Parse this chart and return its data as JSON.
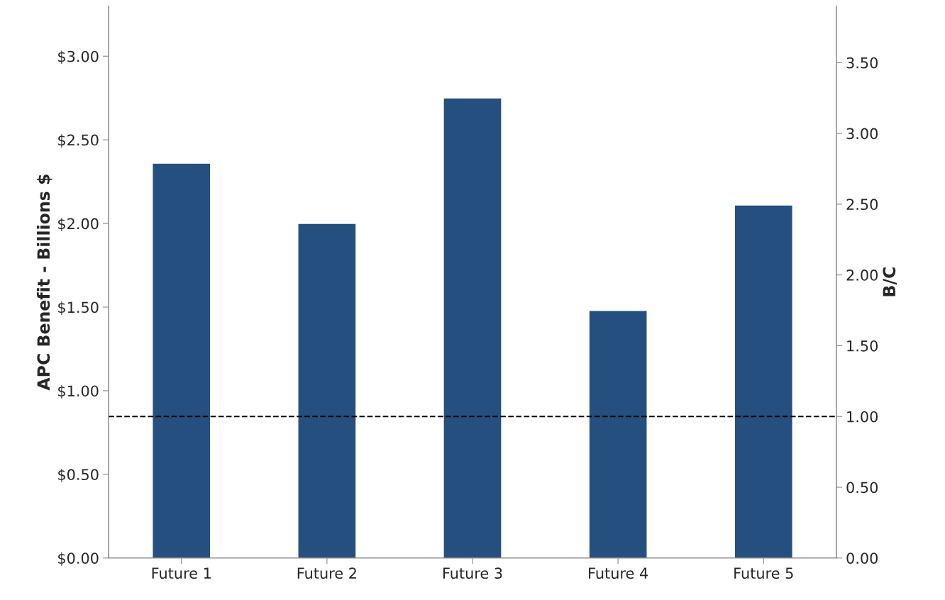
{
  "chart_data": {
    "type": "bar",
    "categories": [
      "Future 1",
      "Future 2",
      "Future 3",
      "Future 4",
      "Future 5"
    ],
    "values": [
      2.36,
      2.0,
      2.75,
      1.48,
      2.11
    ],
    "color": "#254f7e",
    "ylabel": "APC Benefit - Billions $",
    "y2label": "B/C",
    "ylim": [
      0,
      3.3
    ],
    "yticks": [
      {
        "value": 0,
        "label": "$0.00"
      },
      {
        "value": 0.5,
        "label": "$0.50"
      },
      {
        "value": 1,
        "label": "$1.00"
      },
      {
        "value": 1.5,
        "label": "$1.50"
      },
      {
        "value": 2,
        "label": "$2.00"
      },
      {
        "value": 2.5,
        "label": "$2.50"
      },
      {
        "value": 3,
        "label": "$3.00"
      }
    ],
    "y2lim": [
      0,
      3.9
    ],
    "y2ticks": [
      {
        "value": 0,
        "label": "0.00"
      },
      {
        "value": 0.5,
        "label": "0.50"
      },
      {
        "value": 1,
        "label": "1.00"
      },
      {
        "value": 1.5,
        "label": "1.50"
      },
      {
        "value": 2,
        "label": "2.00"
      },
      {
        "value": 2.5,
        "label": "2.50"
      },
      {
        "value": 3,
        "label": "3.00"
      },
      {
        "value": 3.5,
        "label": "3.50"
      }
    ],
    "ref_lines": [
      {
        "axis": "y2",
        "value": 1,
        "color": "#000000",
        "line_style": "dashed"
      }
    ],
    "grid": false
  }
}
